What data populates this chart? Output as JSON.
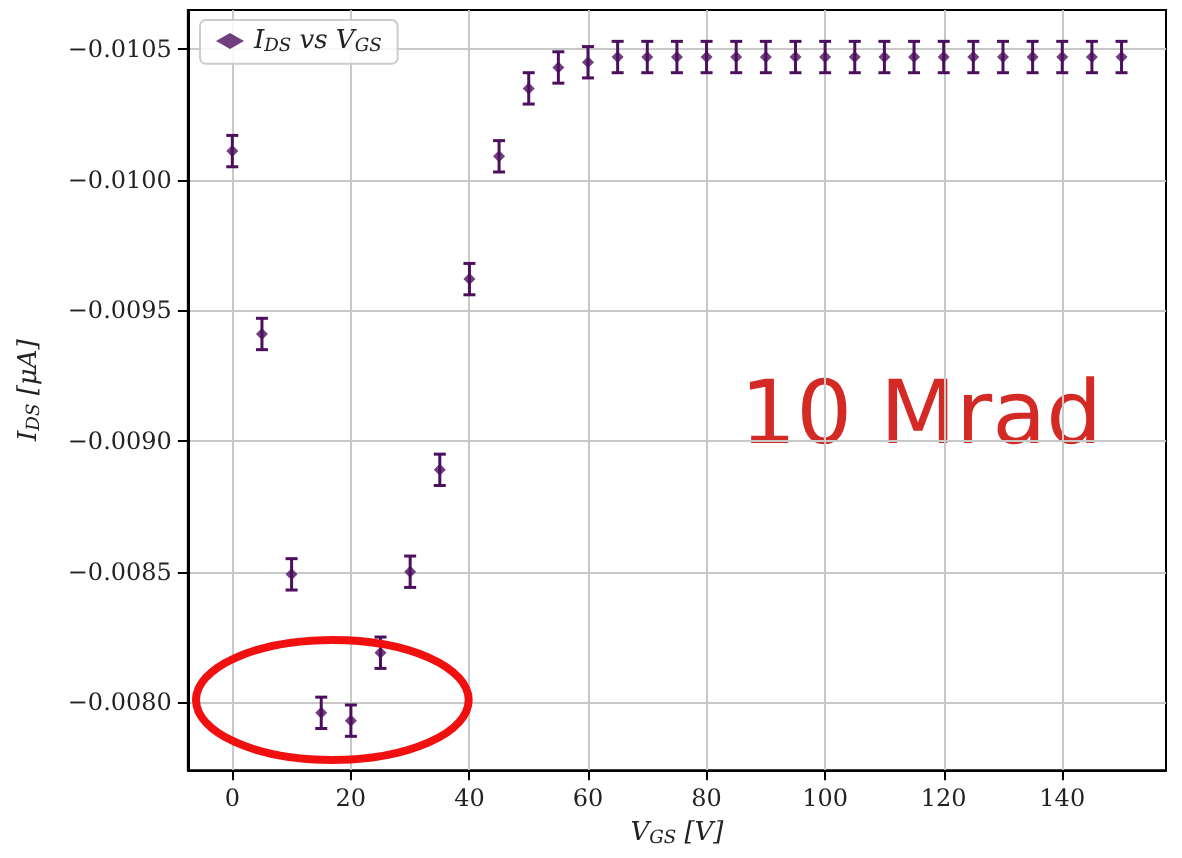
{
  "chart_data": {
    "type": "scatter",
    "x": [
      0,
      5,
      10,
      15,
      20,
      25,
      30,
      35,
      40,
      45,
      50,
      55,
      60,
      65,
      70,
      75,
      80,
      85,
      90,
      95,
      100,
      105,
      110,
      115,
      120,
      125,
      130,
      135,
      140,
      145,
      150
    ],
    "series": [
      {
        "name": "I$_{DS}$ vs V$_{GS}$",
        "color": "#4b0f5e",
        "values": [
          -0.01011,
          -0.00941,
          -0.00849,
          -0.00796,
          -0.00793,
          -0.00819,
          -0.0085,
          -0.00889,
          -0.00962,
          -0.01009,
          -0.01035,
          -0.01043,
          -0.01045,
          -0.01047,
          -0.01047,
          -0.01047,
          -0.01047,
          -0.01047,
          -0.01047,
          -0.01047,
          -0.01047,
          -0.01047,
          -0.01047,
          -0.01047,
          -0.01047,
          -0.01047,
          -0.01047,
          -0.01047,
          -0.01047,
          -0.01047,
          -0.01047
        ],
        "errors": [
          6e-05,
          6e-05,
          6e-05,
          6e-05,
          6e-05,
          6e-05,
          6e-05,
          6e-05,
          6e-05,
          6e-05,
          6e-05,
          6e-05,
          6e-05,
          6e-05,
          6e-05,
          6e-05,
          6e-05,
          6e-05,
          6e-05,
          6e-05,
          6e-05,
          6e-05,
          6e-05,
          6e-05,
          6e-05,
          6e-05,
          6e-05,
          6e-05,
          6e-05,
          6e-05,
          6e-05
        ]
      }
    ],
    "xlabel": "V$_{GS}$ [V]",
    "ylabel": "I$_{DS}$ [μA]",
    "xlim": [
      -7.5,
      157.5
    ],
    "xticks": [
      0,
      20,
      40,
      60,
      80,
      100,
      120,
      140
    ],
    "ylim": [
      -0.00774,
      -0.01065
    ],
    "yticks": [
      {
        "value": -0.0105,
        "label": "−0.0105"
      },
      {
        "value": -0.01,
        "label": "−0.0100"
      },
      {
        "value": -0.0095,
        "label": "−0.0095"
      },
      {
        "value": -0.009,
        "label": "−0.0090"
      },
      {
        "value": -0.0085,
        "label": "−0.0085"
      },
      {
        "value": -0.008,
        "label": "−0.0080"
      }
    ],
    "annotations": [
      "10 Mrad"
    ],
    "grid": true,
    "legend": "top left",
    "marker": "diamond"
  }
}
